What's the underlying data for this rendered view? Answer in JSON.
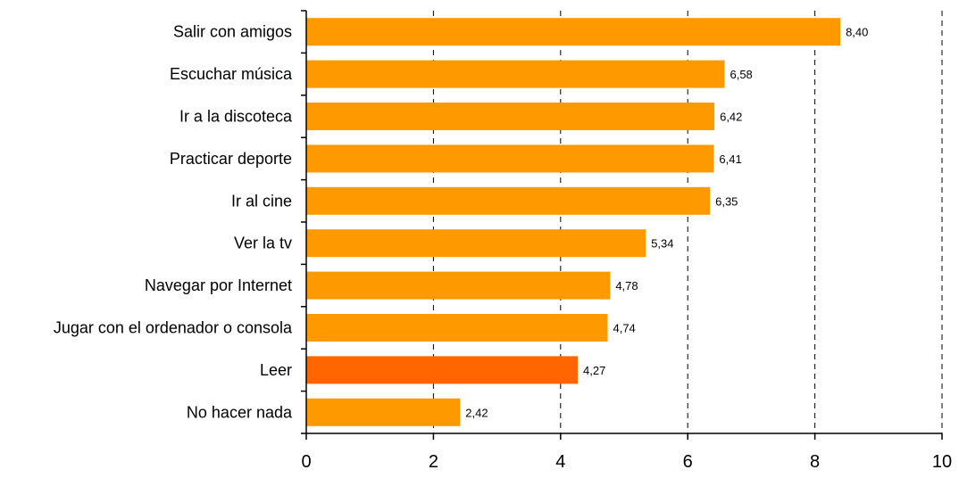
{
  "chart_data": {
    "type": "bar",
    "orientation": "horizontal",
    "categories": [
      "Salir con amigos",
      "Escuchar música",
      "Ir a la discoteca",
      "Practicar deporte",
      "Ir al cine",
      "Ver la tv",
      "Navegar por Internet",
      "Jugar con el ordenador o consola",
      "Leer",
      "No hacer nada"
    ],
    "values": [
      8.4,
      6.58,
      6.42,
      6.41,
      6.35,
      5.34,
      4.78,
      4.74,
      4.27,
      2.42
    ],
    "value_labels": [
      "8,40",
      "6,58",
      "6,42",
      "6,41",
      "6,35",
      "5,34",
      "4,78",
      "4,74",
      "4,27",
      "2,42"
    ],
    "xlim": [
      0,
      10
    ],
    "x_ticks": [
      0,
      2,
      4,
      6,
      8,
      10
    ],
    "x_tick_labels": [
      "0",
      "2",
      "4",
      "6",
      "8",
      "10"
    ],
    "grid": "vertical dashed",
    "legend": "none",
    "bar_color": "#FF9900",
    "highlight_color": "#FF6600",
    "highlight_category": "Leer",
    "title": "",
    "xlabel": "",
    "ylabel": ""
  }
}
